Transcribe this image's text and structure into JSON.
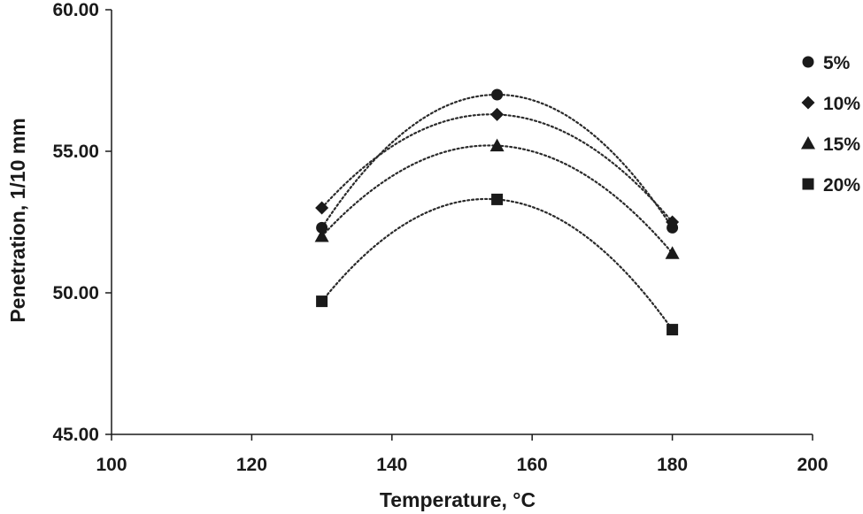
{
  "chart_data": {
    "type": "scatter",
    "title": "",
    "xlabel": "Temperature, °C",
    "ylabel": "Penetration, 1/10 mm",
    "xlim": [
      100,
      200
    ],
    "ylim": [
      45,
      60
    ],
    "xticks": [
      100,
      120,
      140,
      160,
      180,
      200
    ],
    "yticks": [
      45,
      50,
      55,
      60
    ],
    "xtick_labels": [
      "100",
      "120",
      "140",
      "160",
      "180",
      "200"
    ],
    "ytick_labels": [
      "45.00",
      "50.00",
      "55.00",
      "60.00"
    ],
    "grid": false,
    "legend_position": "right",
    "trendline": "polynomial order 2, dotted",
    "marker_color": "#1a1a1a",
    "series": [
      {
        "name": "5%",
        "marker": "circle",
        "x": [
          130,
          155,
          180
        ],
        "y": [
          52.3,
          57.0,
          52.3
        ]
      },
      {
        "name": "10%",
        "marker": "diamond",
        "x": [
          130,
          155,
          180
        ],
        "y": [
          53.0,
          56.3,
          52.5
        ]
      },
      {
        "name": "15%",
        "marker": "triangle",
        "x": [
          130,
          155,
          180
        ],
        "y": [
          52.0,
          55.2,
          51.4
        ]
      },
      {
        "name": "20%",
        "marker": "square",
        "x": [
          130,
          155,
          180
        ],
        "y": [
          49.7,
          53.3,
          48.7
        ]
      }
    ]
  }
}
